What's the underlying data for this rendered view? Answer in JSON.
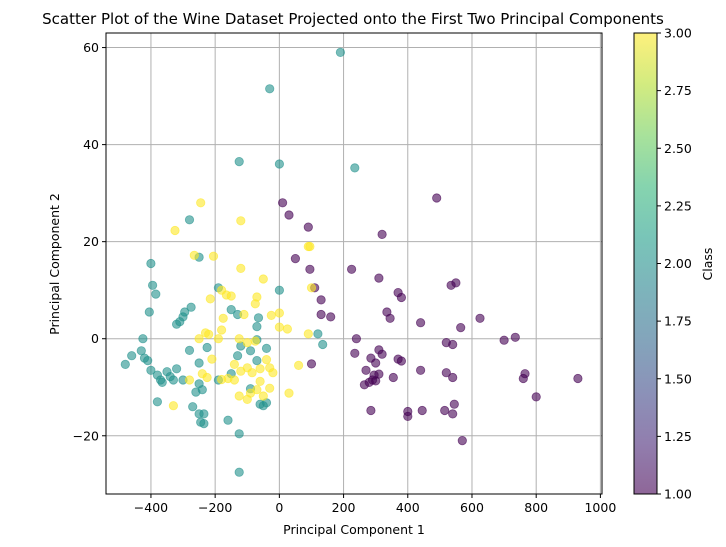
{
  "chart_data": {
    "type": "scatter",
    "title": "Scatter Plot of the Wine Dataset Projected onto the First Two Principal Components",
    "xlabel": "Principal Component 1",
    "ylabel": "Principal Component 2",
    "xlim": [
      -540,
      1005
    ],
    "ylim": [
      -32,
      63
    ],
    "xticks": [
      -400,
      -200,
      0,
      200,
      400,
      600,
      800,
      1000
    ],
    "yticks": [
      -20,
      0,
      20,
      40,
      60
    ],
    "xtick_labels": [
      "−400",
      "−200",
      "0",
      "200",
      "400",
      "600",
      "800",
      "1000"
    ],
    "ytick_labels": [
      "−20",
      "0",
      "20",
      "40",
      "60"
    ],
    "grid": true,
    "alpha": 0.6,
    "colorbar": {
      "label": "Class",
      "range": [
        1.0,
        3.0
      ],
      "ticks": [
        1.0,
        1.25,
        1.5,
        1.75,
        2.0,
        2.25,
        2.5,
        2.75,
        3.0
      ],
      "tick_labels": [
        "1.00",
        "1.25",
        "1.50",
        "1.75",
        "2.00",
        "2.25",
        "2.50",
        "2.75",
        "3.00"
      ],
      "colormap": "viridis",
      "colors": [
        "#440154",
        "#482878",
        "#3e4989",
        "#31688e",
        "#26828e",
        "#1f9e89",
        "#35b779",
        "#6ece58",
        "#b5de2b",
        "#fde725"
      ]
    },
    "class_colors": {
      "1": "#440154",
      "2": "#21918c",
      "3": "#fde725"
    },
    "series": [
      {
        "class": 1,
        "points": [
          [
            10,
            28
          ],
          [
            30,
            25.5
          ],
          [
            90,
            23
          ],
          [
            320,
            21.5
          ],
          [
            490,
            29
          ],
          [
            225,
            14.3
          ],
          [
            95,
            14.3
          ],
          [
            110,
            10.5
          ],
          [
            50,
            16.5
          ],
          [
            550,
            11.5
          ],
          [
            535,
            11
          ],
          [
            370,
            9.5
          ],
          [
            380,
            8.5
          ],
          [
            310,
            12.5
          ],
          [
            130,
            8
          ],
          [
            160,
            4.5
          ],
          [
            130,
            5
          ],
          [
            440,
            3.3
          ],
          [
            335,
            5.5
          ],
          [
            345,
            4.2
          ],
          [
            565,
            2.3
          ],
          [
            625,
            4.2
          ],
          [
            700,
            -0.3
          ],
          [
            735,
            0.3
          ],
          [
            520,
            -0.8
          ],
          [
            540,
            -1.2
          ],
          [
            240,
            0
          ],
          [
            235,
            -3
          ],
          [
            310,
            -2.3
          ],
          [
            320,
            -3.2
          ],
          [
            285,
            -4
          ],
          [
            300,
            -5
          ],
          [
            370,
            -4.2
          ],
          [
            380,
            -4.6
          ],
          [
            270,
            -6.5
          ],
          [
            295,
            -7.5
          ],
          [
            310,
            -7.3
          ],
          [
            355,
            -8
          ],
          [
            440,
            -6.5
          ],
          [
            520,
            -7
          ],
          [
            540,
            -8
          ],
          [
            765,
            -7.2
          ],
          [
            760,
            -8.2
          ],
          [
            930,
            -8.2
          ],
          [
            800,
            -12
          ],
          [
            265,
            -9.5
          ],
          [
            290,
            -8.5
          ],
          [
            300,
            -8.7
          ],
          [
            280,
            -9
          ],
          [
            285,
            -14.8
          ],
          [
            400,
            -15
          ],
          [
            400,
            -16
          ],
          [
            445,
            -14.8
          ],
          [
            515,
            -14.8
          ],
          [
            540,
            -15.5
          ],
          [
            545,
            -13.5
          ],
          [
            570,
            -21
          ],
          [
            100,
            -5.2
          ]
        ]
      },
      {
        "class": 2,
        "points": [
          [
            190,
            59
          ],
          [
            -30,
            51.5
          ],
          [
            -125,
            36.5
          ],
          [
            0,
            36
          ],
          [
            235,
            35.2
          ],
          [
            -280,
            24.5
          ],
          [
            -250,
            16.8
          ],
          [
            -400,
            15.5
          ],
          [
            -395,
            11
          ],
          [
            -385,
            9.2
          ],
          [
            -295,
            5.5
          ],
          [
            -275,
            6.5
          ],
          [
            -300,
            4.5
          ],
          [
            -310,
            3.5
          ],
          [
            -320,
            3
          ],
          [
            -405,
            5.5
          ],
          [
            -190,
            10.5
          ],
          [
            -150,
            6
          ],
          [
            -130,
            5
          ],
          [
            -65,
            4.3
          ],
          [
            -70,
            2.5
          ],
          [
            0,
            10
          ],
          [
            120,
            1
          ],
          [
            135,
            -1.2
          ],
          [
            -425,
            0
          ],
          [
            -430,
            -2.5
          ],
          [
            -460,
            -3.5
          ],
          [
            -420,
            -4
          ],
          [
            -410,
            -4.5
          ],
          [
            -480,
            -5.3
          ],
          [
            -400,
            -6.5
          ],
          [
            -380,
            -7.5
          ],
          [
            -370,
            -8.5
          ],
          [
            -365,
            -9
          ],
          [
            -340,
            -7.8
          ],
          [
            -330,
            -8.5
          ],
          [
            -320,
            -6.2
          ],
          [
            -300,
            -8.5
          ],
          [
            -280,
            -2.4
          ],
          [
            -250,
            -5
          ],
          [
            -225,
            -1.8
          ],
          [
            -190,
            -8.5
          ],
          [
            -150,
            -7.2
          ],
          [
            -130,
            -3.5
          ],
          [
            -120,
            -1.5
          ],
          [
            -90,
            -2.5
          ],
          [
            -70,
            -4.5
          ],
          [
            -40,
            -2
          ],
          [
            -70,
            -0.2
          ],
          [
            -260,
            -11
          ],
          [
            -250,
            -9.3
          ],
          [
            -240,
            -10.5
          ],
          [
            -270,
            -14
          ],
          [
            -250,
            -15.5
          ],
          [
            -245,
            -17.2
          ],
          [
            -235,
            -17.5
          ],
          [
            -235,
            -15.5
          ],
          [
            -160,
            -16.8
          ],
          [
            -90,
            -10.3
          ],
          [
            -60,
            -13.5
          ],
          [
            -50,
            -13.8
          ],
          [
            -40,
            -13.2
          ],
          [
            -125,
            -19.6
          ],
          [
            -125,
            -27.5
          ],
          [
            -380,
            -13
          ],
          [
            -350,
            -6.8
          ]
        ]
      },
      {
        "class": 3,
        "points": [
          [
            -245,
            28
          ],
          [
            -325,
            22.3
          ],
          [
            -120,
            24.3
          ],
          [
            -265,
            17.2
          ],
          [
            -205,
            17
          ],
          [
            -120,
            14.5
          ],
          [
            -50,
            12.3
          ],
          [
            90,
            19
          ],
          [
            95,
            19
          ],
          [
            100,
            10.5
          ],
          [
            -180,
            10
          ],
          [
            -215,
            8.2
          ],
          [
            -165,
            9
          ],
          [
            -150,
            8.8
          ],
          [
            -70,
            8.6
          ],
          [
            -75,
            7.2
          ],
          [
            0,
            5.3
          ],
          [
            -175,
            4.2
          ],
          [
            -110,
            5
          ],
          [
            -25,
            4.8
          ],
          [
            -230,
            1.2
          ],
          [
            -220,
            0.9
          ],
          [
            -180,
            1.8
          ],
          [
            -190,
            0
          ],
          [
            -125,
            0
          ],
          [
            -100,
            -0.8
          ],
          [
            -75,
            -0.5
          ],
          [
            0,
            2.4
          ],
          [
            25,
            2
          ],
          [
            90,
            1
          ],
          [
            -250,
            0
          ],
          [
            -210,
            -4.2
          ],
          [
            -240,
            -7.2
          ],
          [
            -225,
            -8
          ],
          [
            -180,
            -8.4
          ],
          [
            -140,
            -5.3
          ],
          [
            -120,
            -6.7
          ],
          [
            -100,
            -6
          ],
          [
            -85,
            -7
          ],
          [
            -60,
            -6.2
          ],
          [
            -30,
            -6
          ],
          [
            -160,
            -8.2
          ],
          [
            -140,
            -8.5
          ],
          [
            -125,
            -11.8
          ],
          [
            -100,
            -12.5
          ],
          [
            -90,
            -11.2
          ],
          [
            -70,
            -10.5
          ],
          [
            -50,
            -11.8
          ],
          [
            -30,
            -10.2
          ],
          [
            -60,
            -8.8
          ],
          [
            -40,
            -4.3
          ],
          [
            -20,
            -7
          ],
          [
            30,
            -11.2
          ],
          [
            -330,
            -13.8
          ],
          [
            -280,
            -8.5
          ],
          [
            60,
            -5.5
          ]
        ]
      }
    ]
  }
}
